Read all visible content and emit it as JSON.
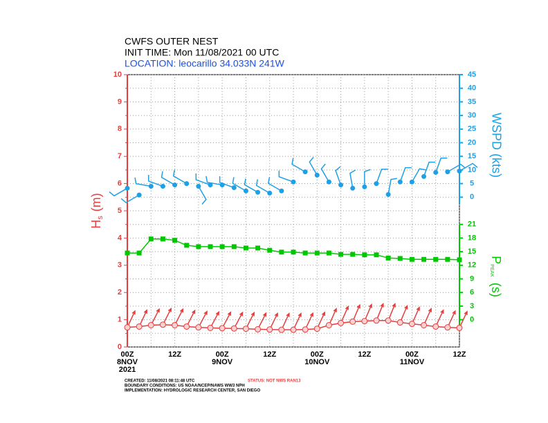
{
  "chart_data": {
    "type": "line",
    "title": "CWFS OUTER NEST",
    "subtitle": "INIT TIME: Mon 11/08/2021 00 UTC",
    "location": "LOCATION: leocarillo 34.033N 241W",
    "x": [
      0,
      3,
      6,
      9,
      12,
      15,
      18,
      21,
      24,
      27,
      30,
      33,
      36,
      39,
      42,
      45,
      48,
      51,
      54,
      57,
      60,
      63,
      66,
      69,
      72,
      75,
      78,
      81,
      84
    ],
    "xlim": [
      0,
      84
    ],
    "xticks": [
      {
        "value": 0,
        "label": "00Z"
      },
      {
        "value": 12,
        "label": "12Z"
      },
      {
        "value": 24,
        "label": "00Z"
      },
      {
        "value": 36,
        "label": "12Z"
      },
      {
        "value": 48,
        "label": "00Z"
      },
      {
        "value": 60,
        "label": "12Z"
      },
      {
        "value": 72,
        "label": "00Z"
      },
      {
        "value": 84,
        "label": "12Z"
      }
    ],
    "xminorticks": [
      6,
      18,
      30,
      42,
      54,
      66,
      78
    ],
    "dates": [
      {
        "value": 0,
        "label": "8NOV"
      },
      {
        "value": 24,
        "label": "9NOV"
      },
      {
        "value": 48,
        "label": "10NOV"
      },
      {
        "value": 72,
        "label": "11NOV"
      }
    ],
    "year": "2021",
    "ylim": [
      0,
      10
    ],
    "yticks": [
      0,
      1,
      2,
      3,
      4,
      5,
      6,
      7,
      8,
      9,
      10
    ],
    "yminorticks": [
      0.5,
      1.5,
      2.5,
      3.5,
      4.5,
      5.5,
      6.5,
      7.5,
      8.5,
      9.5
    ],
    "ylabel": {
      "symbol": "H",
      "subscript": "s",
      "unit": "(m)"
    },
    "y2lim": [
      -55,
      45
    ],
    "y2ticks": [
      0,
      5,
      10,
      15,
      20,
      25,
      30,
      35,
      40,
      45
    ],
    "y2label": "WSPD (kts)",
    "y3lim": [
      -6,
      54
    ],
    "y3ticks": [
      0,
      3,
      6,
      9,
      12,
      15,
      18,
      21
    ],
    "y3label": {
      "symbol": "P",
      "subscript": "PEAK",
      "unit": "(s)"
    },
    "grid": true,
    "series": [
      {
        "color": "#e83c3c",
        "axis": "y",
        "marker": "open-circle",
        "connect": true,
        "direction_style": "wave-arrow",
        "values": [
          0.72,
          0.75,
          0.8,
          0.82,
          0.8,
          0.75,
          0.72,
          0.7,
          0.69,
          0.68,
          0.67,
          0.65,
          0.64,
          0.63,
          0.63,
          0.64,
          0.67,
          0.8,
          0.88,
          0.93,
          0.95,
          0.97,
          0.97,
          0.9,
          0.85,
          0.8,
          0.75,
          0.72,
          0.7
        ],
        "directions": [
          205,
          205,
          207,
          207,
          207,
          207,
          208,
          208,
          208,
          208,
          207,
          207,
          206,
          205,
          205,
          205,
          205,
          204,
          204,
          203,
          203,
          202,
          202,
          203,
          204,
          204,
          205,
          205,
          205
        ]
      },
      {
        "color": "#00c800",
        "axis": "y3",
        "marker": "square",
        "connect": true,
        "values": [
          14.7,
          14.7,
          17.8,
          17.8,
          17.5,
          16.4,
          16.1,
          16.1,
          16.1,
          16.1,
          15.8,
          15.8,
          15.3,
          14.9,
          14.9,
          14.7,
          14.7,
          14.7,
          14.4,
          14.4,
          14.3,
          14.3,
          13.6,
          13.5,
          13.3,
          13.3,
          13.3,
          13.3,
          13.2
        ]
      },
      {
        "color": "#1ea0e6",
        "axis": "y2",
        "marker": "dot",
        "connect": false,
        "direction_style": "wind-barb",
        "values": [
          3.3,
          0.8,
          4,
          4,
          4.5,
          5,
          4,
          4.5,
          4.5,
          3.5,
          2.3,
          1.8,
          1.5,
          2.3,
          5.6,
          9.3,
          8.1,
          5.6,
          4.5,
          3.3,
          3.8,
          5,
          1,
          5.6,
          5.6,
          7.6,
          9.1,
          9.3,
          9.6
        ],
        "directions": [
          240,
          240,
          280,
          290,
          300,
          300,
          150,
          290,
          280,
          290,
          300,
          300,
          300,
          300,
          290,
          300,
          330,
          330,
          340,
          350,
          0,
          20,
          10,
          20,
          30,
          20,
          20,
          60,
          60
        ]
      }
    ]
  },
  "footer": {
    "created": "CREATED: 11/08/2021 08:11:48 UTC",
    "status": "STATUS: NOT NWS RAN13",
    "boundary": "BOUNDARY CONDITIONS: US NOAA/NCEP/NAWS WW3 NPH",
    "implementation": "IMPLEMENTATION: HYDROLOGIC RESEARCH CENTER, SAN DIEGO"
  }
}
